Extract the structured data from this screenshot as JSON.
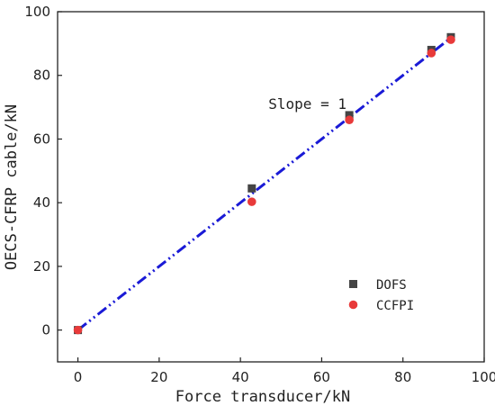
{
  "chart_data": {
    "type": "scatter",
    "xlabel": "Force transducer/kN",
    "ylabel": "OECS-CFRP cable/kN",
    "xlim": [
      -5,
      100
    ],
    "ylim": [
      -10,
      100
    ],
    "x_ticks": [
      0,
      20,
      40,
      60,
      80,
      100
    ],
    "y_ticks": [
      0,
      20,
      40,
      60,
      80,
      100
    ],
    "grid": false,
    "legend_position": "bottom-right",
    "series": [
      {
        "name": "DOFS",
        "marker": "square",
        "color": "#444444",
        "x": [
          0,
          42.8,
          66.8,
          87.0,
          91.8
        ],
        "y": [
          0,
          44.5,
          67.5,
          88.0,
          92.0
        ]
      },
      {
        "name": "CCFPI",
        "marker": "circle",
        "color": "#e83a3a",
        "x": [
          0,
          42.8,
          66.8,
          87.0,
          91.8
        ],
        "y": [
          0,
          40.3,
          66.0,
          87.0,
          91.2
        ]
      }
    ],
    "reference_line": {
      "style": "dash-dot",
      "color": "#1a1ad6",
      "x": [
        0,
        91.8
      ],
      "y": [
        0,
        91.8
      ]
    },
    "annotation": {
      "text": "Slope = 1",
      "x": 56.5,
      "y": 69.5
    }
  }
}
